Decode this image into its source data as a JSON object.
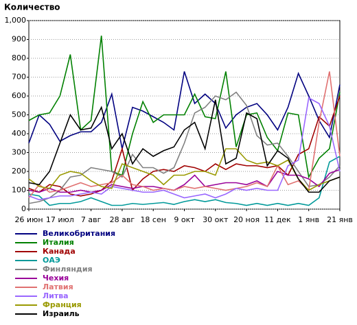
{
  "chart_data": {
    "type": "line",
    "title": "Количество",
    "categories": [
      "26 июн",
      null,
      null,
      "17 июл",
      null,
      null,
      "7 авг",
      null,
      null,
      "28 авг",
      null,
      null,
      "18 сен",
      null,
      null,
      "9 окт",
      null,
      null,
      "30 окт",
      null,
      null,
      "20 ноя",
      null,
      null,
      "11 дек",
      null,
      null,
      "1 янв",
      null,
      null,
      "21 янв"
    ],
    "ylim": [
      0,
      1000
    ],
    "yticks": [
      0,
      100,
      200,
      300,
      400,
      500,
      600,
      700,
      800,
      900,
      {
        "value": 1000,
        "label": "1,000"
      }
    ],
    "grid": true,
    "series": [
      {
        "name": "Великобритания",
        "color": "#000080",
        "values": [
          350,
          500,
          450,
          360,
          390,
          410,
          410,
          460,
          610,
          320,
          540,
          520,
          490,
          460,
          420,
          730,
          560,
          610,
          560,
          430,
          500,
          540,
          560,
          500,
          420,
          540,
          720,
          600,
          470,
          380,
          660
        ]
      },
      {
        "name": "Италия",
        "color": "#008000",
        "values": [
          470,
          500,
          510,
          600,
          820,
          420,
          470,
          920,
          200,
          180,
          400,
          570,
          460,
          500,
          500,
          500,
          610,
          490,
          480,
          730,
          330,
          500,
          510,
          380,
          310,
          510,
          500,
          170,
          270,
          320,
          620
        ]
      },
      {
        "name": "Канада",
        "color": "#a00000",
        "values": [
          110,
          90,
          130,
          120,
          80,
          70,
          80,
          100,
          150,
          320,
          100,
          160,
          200,
          210,
          200,
          230,
          220,
          200,
          240,
          210,
          240,
          230,
          230,
          220,
          230,
          180,
          290,
          320,
          490,
          440,
          600
        ]
      },
      {
        "name": "ОАЭ",
        "color": "#009999",
        "values": [
          80,
          70,
          20,
          30,
          30,
          40,
          60,
          40,
          20,
          20,
          30,
          25,
          30,
          35,
          25,
          40,
          50,
          40,
          50,
          35,
          30,
          20,
          30,
          20,
          30,
          20,
          30,
          20,
          60,
          250,
          280
        ]
      },
      {
        "name": "Финляндия",
        "color": "#808080",
        "values": [
          30,
          40,
          60,
          100,
          170,
          180,
          220,
          210,
          200,
          170,
          290,
          220,
          220,
          190,
          220,
          350,
          510,
          540,
          600,
          580,
          620,
          550,
          390,
          340,
          350,
          280,
          200,
          120,
          130,
          170,
          230
        ]
      },
      {
        "name": "Чехия",
        "color": "#990099",
        "values": [
          100,
          90,
          110,
          90,
          90,
          100,
          90,
          100,
          130,
          120,
          110,
          120,
          120,
          110,
          100,
          130,
          180,
          120,
          130,
          140,
          140,
          130,
          150,
          120,
          200,
          180,
          180,
          160,
          120,
          190,
          210
        ]
      },
      {
        "name": "Латвия",
        "color": "#e07070",
        "values": [
          60,
          130,
          90,
          100,
          120,
          140,
          120,
          130,
          140,
          180,
          130,
          120,
          100,
          110,
          100,
          120,
          110,
          120,
          110,
          100,
          110,
          120,
          140,
          120,
          230,
          130,
          150,
          100,
          460,
          730,
          280
        ]
      },
      {
        "name": "Литва",
        "color": "#9966ff",
        "values": [
          70,
          50,
          60,
          70,
          70,
          80,
          90,
          80,
          120,
          110,
          100,
          90,
          90,
          100,
          80,
          60,
          70,
          80,
          60,
          80,
          110,
          100,
          110,
          100,
          100,
          230,
          260,
          590,
          560,
          440,
          200
        ]
      },
      {
        "name": "Франция",
        "color": "#999900",
        "values": [
          160,
          120,
          110,
          180,
          200,
          190,
          150,
          120,
          110,
          240,
          220,
          200,
          180,
          130,
          180,
          180,
          200,
          200,
          180,
          320,
          320,
          260,
          240,
          250,
          230,
          260,
          160,
          100,
          130,
          150,
          170
        ]
      },
      {
        "name": "Израиль",
        "color": "#000000",
        "values": [
          140,
          130,
          200,
          350,
          500,
          420,
          430,
          540,
          320,
          400,
          240,
          320,
          280,
          310,
          330,
          420,
          460,
          320,
          580,
          240,
          270,
          510,
          480,
          230,
          310,
          270,
          160,
          90,
          90,
          150,
          170
        ]
      }
    ]
  }
}
